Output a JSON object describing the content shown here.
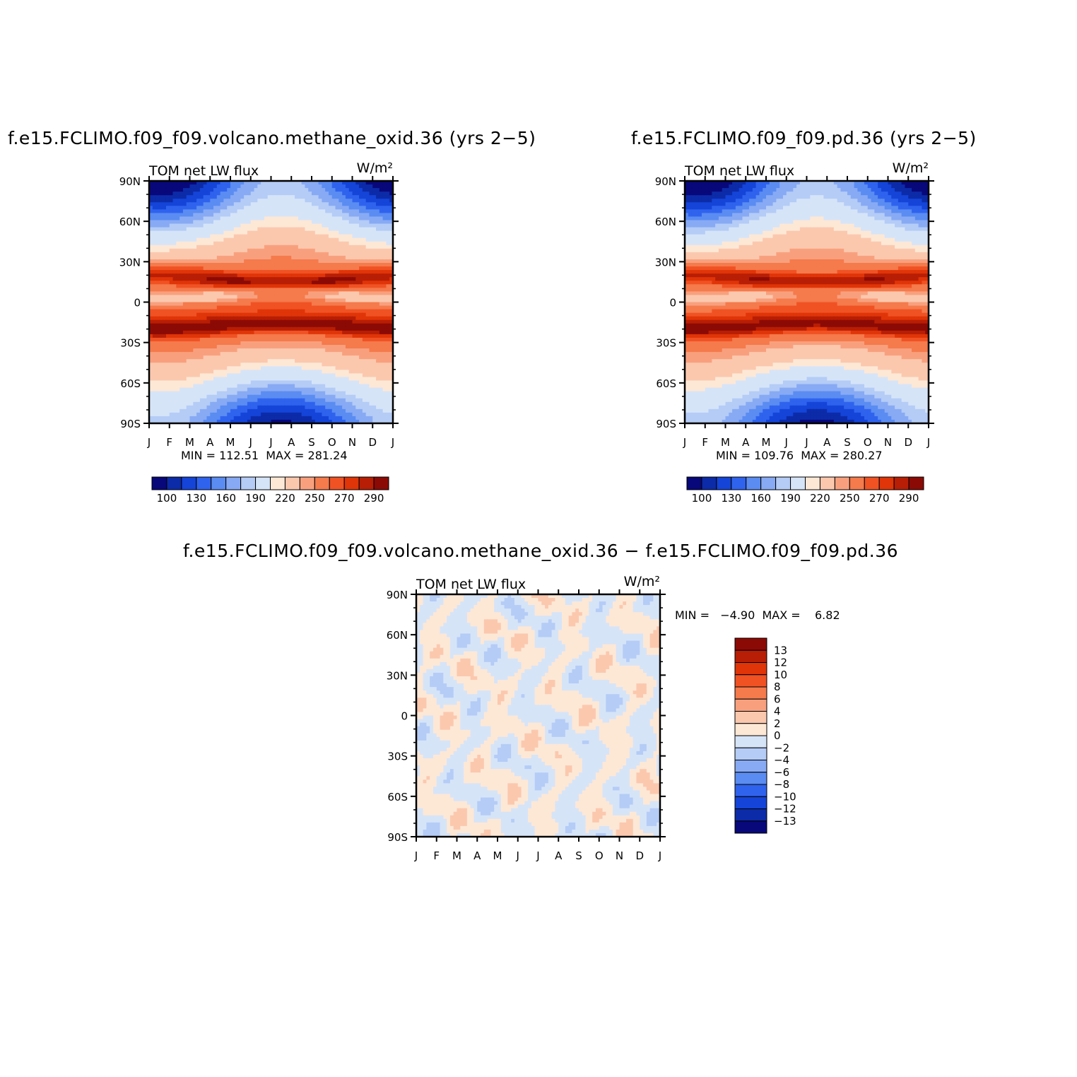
{
  "titles": {
    "left": "f.e15.FCLIMO.f09_f09.volcano.methane_oxid.36 (yrs 2−5)",
    "right": "f.e15.FCLIMO.f09_f09.pd.36 (yrs 2−5)",
    "bottom": "f.e15.FCLIMO.f09_f09.volcano.methane_oxid.36 − f.e15.FCLIMO.f09_f09.pd.36"
  },
  "colors": {
    "abs": [
      "#08087a",
      "#0c2ba8",
      "#1444d8",
      "#2f63ee",
      "#5a8cf2",
      "#88aaf4",
      "#b4ccf6",
      "#d6e4f8",
      "#fde8d6",
      "#fbc8ae",
      "#f8a07e",
      "#f57a4c",
      "#f05224",
      "#e03508",
      "#b81e05",
      "#8c0a05"
    ],
    "diff": [
      "#08087a",
      "#0c2ba8",
      "#1444d8",
      "#2f63ee",
      "#5a8cf2",
      "#88aaf4",
      "#b4ccf6",
      "#d6e4f8",
      "#fde8d6",
      "#fbc8ae",
      "#f8a07e",
      "#f57a4c",
      "#f05224",
      "#e03508",
      "#b81e05",
      "#8c0a05"
    ]
  },
  "chart_data": [
    {
      "type": "heatmap",
      "title": "f.e15.FCLIMO.f09_f09.volcano.methane_oxid.36 (yrs 2−5)",
      "subtitle": "TOM net LW flux",
      "units": "W/m²",
      "x_ticks": [
        "J",
        "F",
        "M",
        "A",
        "M",
        "J",
        "J",
        "A",
        "S",
        "O",
        "N",
        "D",
        "J"
      ],
      "y_ticks": [
        "90N",
        "60N",
        "30N",
        "0",
        "30S",
        "60S",
        "90S"
      ],
      "min_max_text": "MIN = 112.51  MAX = 281.24",
      "min": 112.51,
      "max": 281.24,
      "colorbar_labels": [
        "100",
        "130",
        "160",
        "190",
        "220",
        "250",
        "270",
        "290"
      ],
      "levels": [
        100,
        110,
        120,
        130,
        140,
        150,
        160,
        170,
        190,
        200,
        220,
        230,
        250,
        260,
        270,
        280,
        290
      ]
    },
    {
      "type": "heatmap",
      "title": "f.e15.FCLIMO.f09_f09.pd.36 (yrs 2−5)",
      "subtitle": "TOM net LW flux",
      "units": "W/m²",
      "x_ticks": [
        "J",
        "F",
        "M",
        "A",
        "M",
        "J",
        "J",
        "A",
        "S",
        "O",
        "N",
        "D",
        "J"
      ],
      "y_ticks": [
        "90N",
        "60N",
        "30N",
        "0",
        "30S",
        "60S",
        "90S"
      ],
      "min_max_text": "MIN = 109.76  MAX = 280.27",
      "min": 109.76,
      "max": 280.27,
      "colorbar_labels": [
        "100",
        "130",
        "160",
        "190",
        "220",
        "250",
        "270",
        "290"
      ],
      "levels": [
        100,
        110,
        120,
        130,
        140,
        150,
        160,
        170,
        190,
        200,
        220,
        230,
        250,
        260,
        270,
        280,
        290
      ]
    },
    {
      "type": "heatmap",
      "title": "f.e15.FCLIMO.f09_f09.volcano.methane_oxid.36 − f.e15.FCLIMO.f09_f09.pd.36",
      "subtitle": "TOM net LW flux",
      "units": "W/m²",
      "x_ticks": [
        "J",
        "F",
        "M",
        "A",
        "M",
        "J",
        "J",
        "A",
        "S",
        "O",
        "N",
        "D",
        "J"
      ],
      "y_ticks": [
        "90N",
        "60N",
        "30N",
        "0",
        "30S",
        "60S",
        "90S"
      ],
      "min_max_text": "MIN =   −4.90  MAX =    6.82",
      "min": -4.9,
      "max": 6.82,
      "colorbar_labels": [
        "13",
        "12",
        "10",
        "8",
        "6",
        "4",
        "2",
        "0",
        "−2",
        "−4",
        "−6",
        "−8",
        "−10",
        "−12",
        "−13"
      ]
    }
  ]
}
